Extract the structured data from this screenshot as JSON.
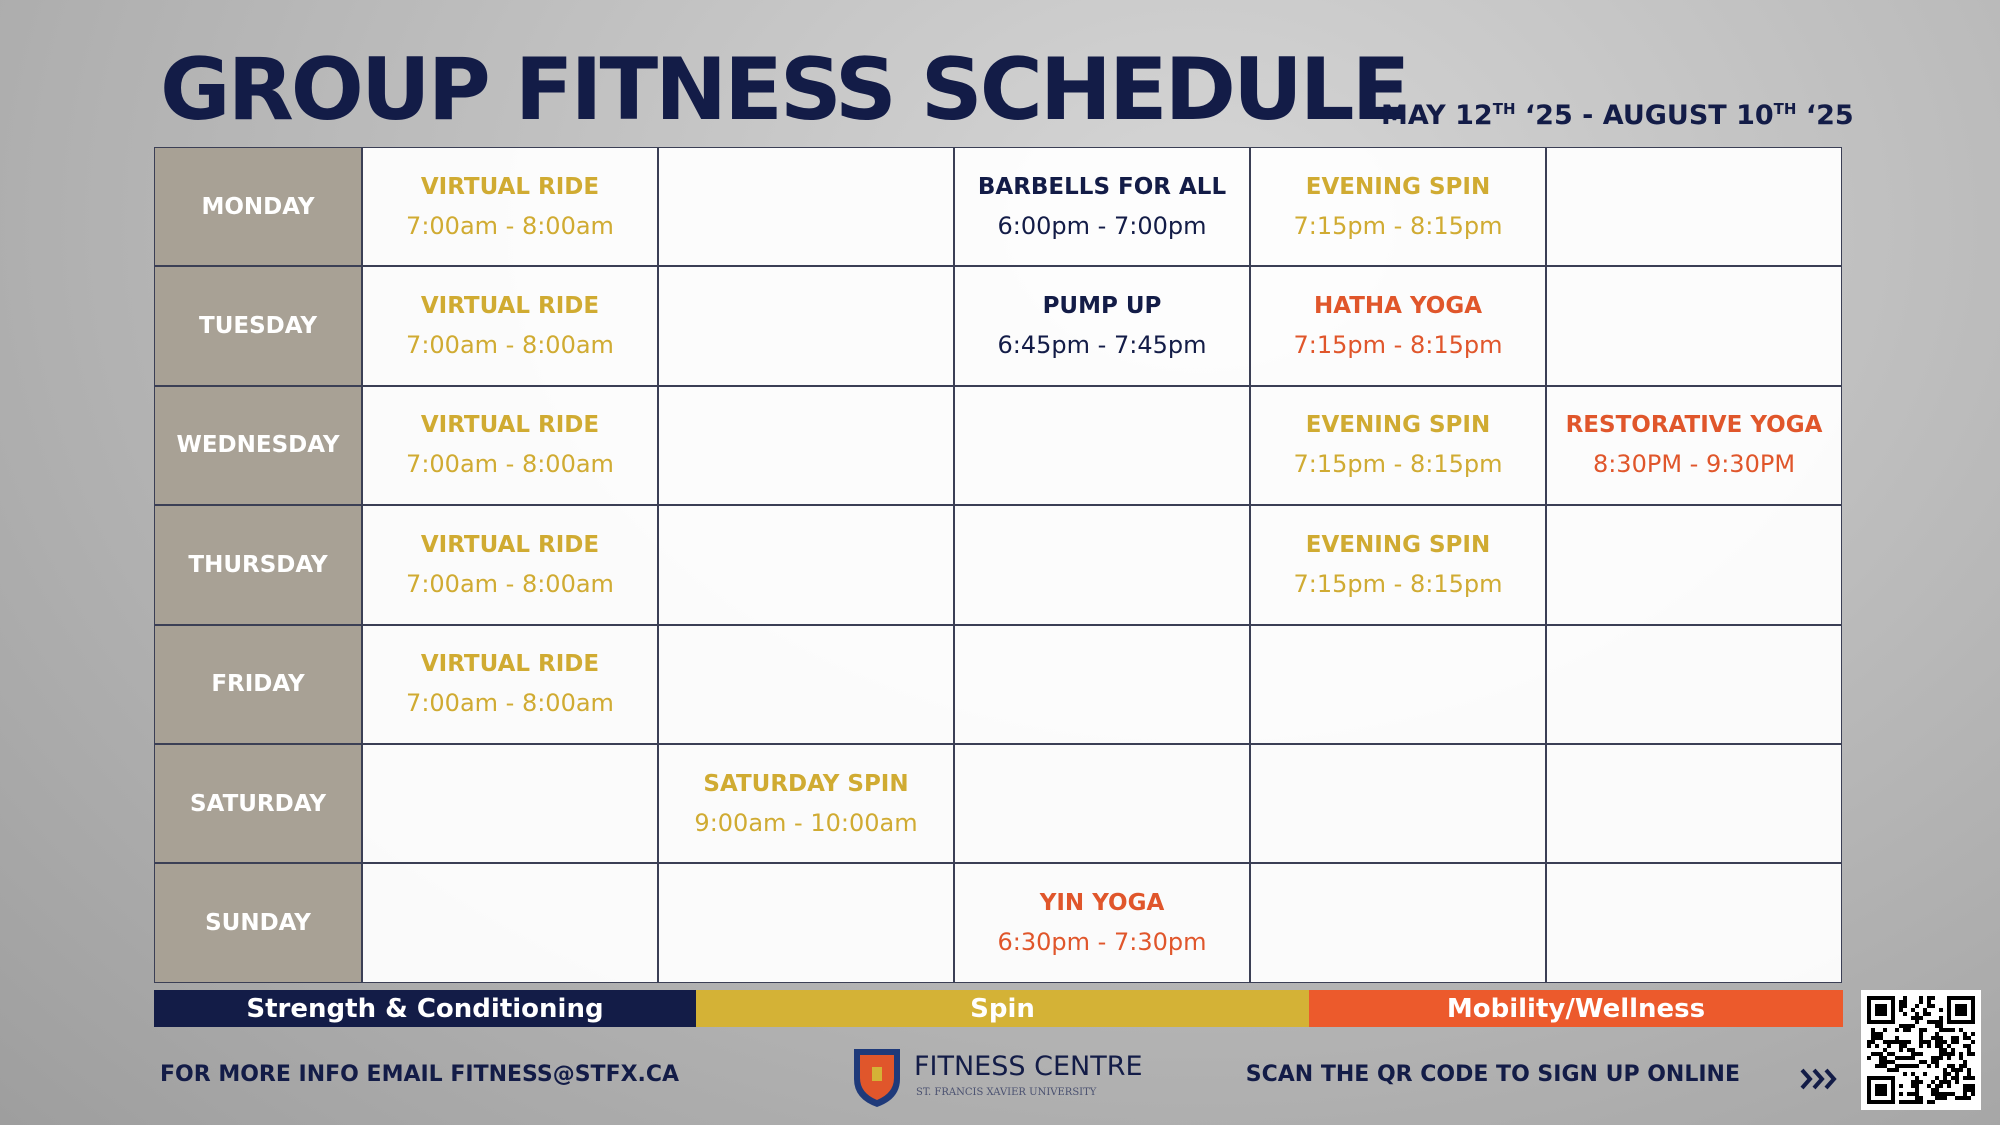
{
  "header": {
    "title": "GROUP FITNESS SCHEDULE",
    "dates": [
      "MAY 12",
      "TH",
      " ‘25 - AUGUST 10",
      "TH",
      " ‘25"
    ]
  },
  "schedule": [
    {
      "day": "MONDAY",
      "classes": [
        {
          "name": "VIRTUAL RIDE",
          "time": "7:00am - 8:00am",
          "color": "#d0ab32"
        },
        null,
        {
          "name": "BARBELLS FOR ALL",
          "time": "6:00pm - 7:00pm",
          "color": "#131c47"
        },
        {
          "name": "EVENING SPIN",
          "time": "7:15pm - 8:15pm",
          "color": "#d0ab32"
        },
        null
      ]
    },
    {
      "day": "TUESDAY",
      "classes": [
        {
          "name": "VIRTUAL RIDE",
          "time": "7:00am - 8:00am",
          "color": "#d0ab32"
        },
        null,
        {
          "name": "PUMP UP",
          "time": "6:45pm - 7:45pm",
          "color": "#131c47"
        },
        {
          "name": "HATHA YOGA",
          "time": "7:15pm - 8:15pm",
          "color": "#e0562b"
        },
        null
      ]
    },
    {
      "day": "WEDNESDAY",
      "classes": [
        {
          "name": "VIRTUAL RIDE",
          "time": "7:00am - 8:00am",
          "color": "#d0ab32"
        },
        null,
        null,
        {
          "name": "EVENING SPIN",
          "time": "7:15pm - 8:15pm",
          "color": "#d0ab32"
        },
        {
          "name": "RESTORATIVE YOGA",
          "time": "8:30PM - 9:30PM",
          "color": "#e0562b"
        }
      ]
    },
    {
      "day": "THURSDAY",
      "classes": [
        {
          "name": "VIRTUAL RIDE",
          "time": "7:00am - 8:00am",
          "color": "#d0ab32"
        },
        null,
        null,
        {
          "name": "EVENING SPIN",
          "time": "7:15pm - 8:15pm",
          "color": "#d0ab32"
        },
        null
      ]
    },
    {
      "day": "FRIDAY",
      "classes": [
        {
          "name": "VIRTUAL RIDE",
          "time": "7:00am - 8:00am",
          "color": "#d0ab32"
        },
        null,
        null,
        null,
        null
      ]
    },
    {
      "day": "SATURDAY",
      "classes": [
        null,
        {
          "name": "SATURDAY SPIN",
          "time": "9:00am - 10:00am",
          "color": "#d0ab32"
        },
        null,
        null,
        null
      ]
    },
    {
      "day": "SUNDAY",
      "classes": [
        null,
        null,
        {
          "name": "YIN YOGA",
          "time": "6:30pm - 7:30pm",
          "color": "#e0562b"
        },
        null,
        null
      ]
    }
  ],
  "legend": [
    {
      "name": "Strength & Conditioning",
      "color": "#131c47"
    },
    {
      "name": "Spin",
      "color": "#d4b236"
    },
    {
      "name": "Mobility/Wellness",
      "color": "#ec5a2c"
    }
  ],
  "footer": {
    "email": "FOR MORE INFO EMAIL FITNESS@STFX.CA",
    "logo_title": "FITNESS CENTRE",
    "logo_subtitle": "ST. FRANCIS XAVIER UNIVERSITY",
    "qr_text": "SCAN THE QR CODE TO SIGN UP ONLINE"
  }
}
